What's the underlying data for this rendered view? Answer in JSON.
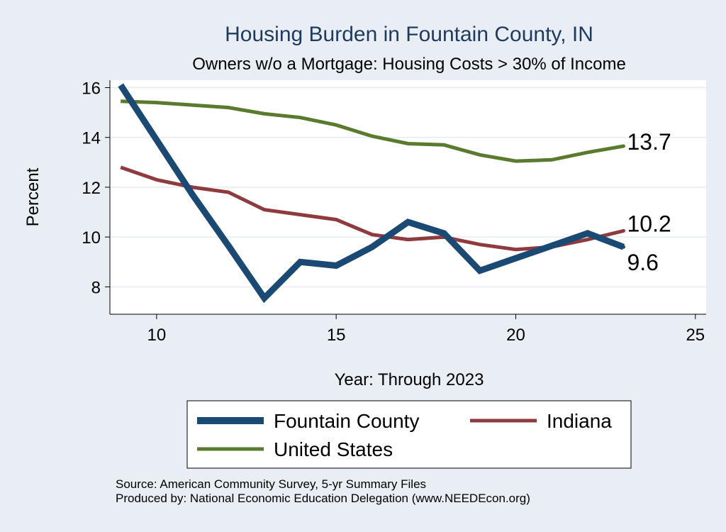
{
  "chart_data": {
    "type": "line",
    "title": "Housing Burden in Fountain County, IN",
    "subtitle": "Owners w/o a Mortgage: Housing Costs > 30% of Income",
    "xlabel": "Year: Through 2023",
    "ylabel": "Percent",
    "xlim": [
      8.7,
      25.3
    ],
    "ylim": [
      6.9,
      16.3
    ],
    "xticks": [
      10,
      15,
      20,
      25
    ],
    "yticks": [
      8,
      10,
      12,
      14,
      16
    ],
    "grid": true,
    "series": [
      {
        "name": "Fountain County",
        "color": "#1a4a73",
        "x": [
          9,
          10,
          11,
          12,
          13,
          14,
          15,
          16,
          17,
          18,
          19,
          20,
          21,
          22,
          23
        ],
        "values": [
          16.1,
          13.9,
          11.7,
          9.65,
          7.55,
          9.0,
          8.85,
          9.6,
          10.6,
          10.15,
          8.65,
          9.15,
          9.65,
          10.15,
          9.6
        ],
        "end_label": "9.6"
      },
      {
        "name": "Indiana",
        "color": "#8f3a3e",
        "x": [
          9,
          10,
          11,
          12,
          13,
          14,
          15,
          16,
          17,
          18,
          19,
          20,
          21,
          22,
          23
        ],
        "values": [
          12.8,
          12.3,
          12.0,
          11.8,
          11.1,
          10.9,
          10.7,
          10.1,
          9.9,
          10.0,
          9.7,
          9.5,
          9.6,
          9.9,
          10.25
        ],
        "end_label": "10.2"
      },
      {
        "name": "United States",
        "color": "#5a7a2e",
        "x": [
          9,
          10,
          11,
          12,
          13,
          14,
          15,
          16,
          17,
          18,
          19,
          20,
          21,
          22,
          23
        ],
        "values": [
          15.45,
          15.4,
          15.3,
          15.2,
          14.95,
          14.8,
          14.5,
          14.05,
          13.75,
          13.7,
          13.3,
          13.05,
          13.1,
          13.4,
          13.65
        ],
        "end_label": "13.7"
      }
    ],
    "legend": {
      "placement": "bottom",
      "entries": [
        "Fountain County",
        "Indiana",
        "United States"
      ]
    },
    "notes": [
      "Source: American Community Survey, 5-yr Summary Files",
      "Produced by: National Economic Education Delegation (www.NEEDEcon.org)"
    ]
  }
}
